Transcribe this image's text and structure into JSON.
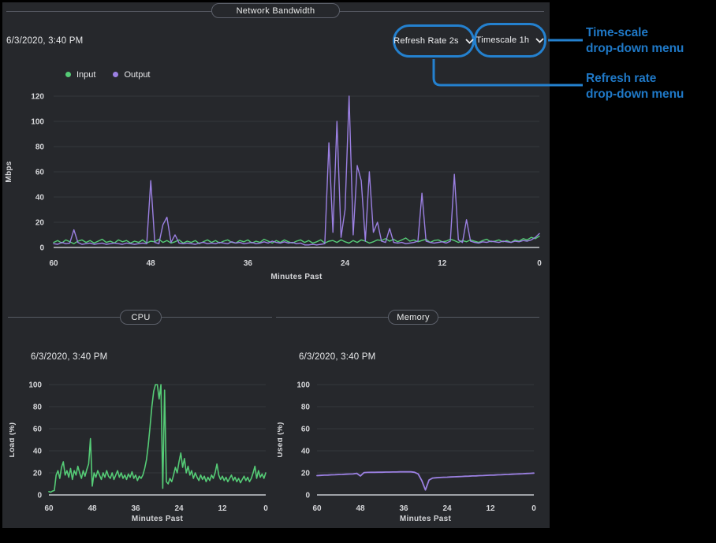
{
  "colors": {
    "panel_bg": "#26282c",
    "accent_blue": "#2481cf",
    "annotation_text_blue": "#1f78c6",
    "input_green": "#55cb76",
    "output_purple": "#9b80e2",
    "grid_line": "#34373d",
    "axis_line": "#9fa2a7"
  },
  "controls": {
    "refresh_rate_label": "Refresh Rate 2s",
    "timescale_label": "Timescale 1h"
  },
  "annotations": {
    "timescale_line1": "Time-scale",
    "timescale_line2": "drop-down menu",
    "refresh_line1": "Refresh rate",
    "refresh_line2": "drop-down menu"
  },
  "chart_data": [
    {
      "id": "network",
      "type": "line",
      "title": "Network Bandwidth",
      "timestamp": "6/3/2020, 3:40 PM",
      "xlabel": "Minutes Past",
      "ylabel": "Mbps",
      "ylim": [
        0,
        120
      ],
      "yticks": [
        0,
        20,
        40,
        60,
        80,
        100,
        120
      ],
      "xticks": [
        60,
        48,
        36,
        24,
        12,
        0
      ],
      "x_range_minutes": [
        60,
        0
      ],
      "grid": "horizontal",
      "legend_position": "top-left",
      "series": [
        {
          "name": "Input",
          "color": "#55cb76",
          "values": [
            4,
            5.5,
            3.5,
            6,
            4.5,
            3,
            5,
            6,
            4,
            5.5,
            3.5,
            5,
            6.5,
            4,
            5,
            3.5,
            6,
            4.5,
            5.5,
            3.5,
            5,
            4,
            6,
            3.5,
            5,
            4.5,
            6.5,
            4,
            5.5,
            3.5,
            4.5,
            6,
            3.5,
            5,
            4,
            5.5,
            3,
            4.5,
            6,
            4,
            5.5,
            3.5,
            5,
            6,
            4,
            3.5,
            5.5,
            4.5,
            6,
            3.5,
            5,
            4,
            6.5,
            5,
            3.5,
            5.5,
            4,
            6,
            4.5,
            3.5,
            5,
            6,
            4,
            5.5,
            3.5,
            4.5,
            6,
            3.5,
            5,
            5.5,
            4,
            6,
            4.5,
            3.5,
            5.5,
            4,
            6,
            5,
            3.5,
            4.5,
            6,
            5.5,
            7,
            5,
            6.5,
            4.5,
            6,
            7.5,
            5,
            6,
            4.5,
            5.5,
            6.5,
            4,
            5.5,
            6,
            4.5,
            5,
            6.5,
            5.5,
            4,
            5.5,
            4.5,
            6,
            5,
            4,
            5.5,
            6.5,
            4.5,
            5,
            6,
            4.5,
            5.5,
            4,
            6,
            5,
            7,
            6,
            8,
            7,
            9
          ]
        },
        {
          "name": "Output",
          "color": "#9b80e2",
          "values": [
            3,
            2.5,
            4,
            3,
            3.5,
            14,
            4,
            2.5,
            3,
            3.5,
            2.5,
            3,
            3.5,
            2.5,
            3,
            3.5,
            3,
            2.5,
            3.5,
            3,
            2.5,
            3,
            3.5,
            3,
            53,
            4,
            3,
            18,
            24,
            4,
            10,
            3.5,
            3,
            3.5,
            3,
            2.5,
            3.5,
            4,
            3,
            3.5,
            3,
            4,
            3.5,
            3,
            4.5,
            3.5,
            4,
            3,
            3.5,
            4,
            3,
            3.5,
            4.5,
            3.5,
            5,
            4,
            3.5,
            4.5,
            3.5,
            4,
            3,
            3.5,
            2,
            2,
            2.5,
            2,
            2.5,
            3,
            83,
            12,
            100,
            8,
            30,
            120,
            10,
            65,
            53,
            5,
            60,
            12,
            20,
            5,
            4,
            15,
            4,
            3.5,
            4,
            3,
            3.5,
            4,
            5,
            43,
            5,
            4,
            3.5,
            4,
            4.5,
            3.5,
            5,
            58,
            6,
            4,
            22,
            5,
            4,
            3.5,
            4.5,
            4,
            5,
            4.5,
            4,
            5,
            4.5,
            4,
            5,
            4.5,
            5.5,
            5,
            6,
            8,
            11
          ]
        }
      ]
    },
    {
      "id": "cpu",
      "type": "line",
      "title": "CPU",
      "timestamp": "6/3/2020, 3:40 PM",
      "xlabel": "Minutes Past",
      "ylabel": "Load (%)",
      "ylim": [
        0,
        100
      ],
      "yticks": [
        0,
        20,
        40,
        60,
        80,
        100
      ],
      "xticks": [
        60,
        48,
        36,
        24,
        12,
        0
      ],
      "x_range_minutes": [
        60,
        0
      ],
      "grid": "horizontal",
      "series": [
        {
          "name": "Load",
          "color": "#55cb76",
          "values": [
            3,
            2.5,
            3.5,
            4,
            18,
            22,
            15,
            25,
            30,
            18,
            22,
            16,
            24,
            14,
            22,
            18,
            26,
            20,
            15,
            22,
            17,
            23,
            28,
            51,
            8,
            20,
            16,
            22,
            18,
            14,
            20,
            16,
            22,
            17,
            15,
            20,
            14,
            18,
            22,
            16,
            20,
            15,
            18,
            14,
            19,
            16,
            21,
            15,
            18,
            13,
            17,
            15,
            18,
            24,
            32,
            45,
            62,
            80,
            94,
            100,
            100,
            87,
            100,
            6,
            95,
            12,
            10,
            15,
            12,
            18,
            25,
            20,
            30,
            38,
            25,
            33,
            20,
            26,
            18,
            22,
            15,
            20,
            16,
            13,
            18,
            14,
            17,
            12,
            16,
            13,
            18,
            15,
            20,
            28,
            18,
            14,
            17,
            13,
            16,
            12,
            15,
            18,
            13,
            16,
            12,
            15,
            11,
            14,
            17,
            13,
            16,
            12,
            15,
            20,
            26,
            15,
            22,
            16,
            19,
            15,
            20
          ]
        }
      ]
    },
    {
      "id": "memory",
      "type": "line",
      "title": "Memory",
      "timestamp": "6/3/2020, 3:40 PM",
      "xlabel": "Minutes Past",
      "ylabel": "Used (%)",
      "ylim": [
        0,
        100
      ],
      "yticks": [
        0,
        20,
        40,
        60,
        80,
        100
      ],
      "xticks": [
        60,
        48,
        36,
        24,
        12,
        0
      ],
      "x_range_minutes": [
        60,
        0
      ],
      "grid": "horizontal",
      "series": [
        {
          "name": "Used",
          "color": "#9b80e2",
          "values": [
            17.5,
            17.7,
            17.9,
            18.0,
            18.2,
            18.3,
            18.5,
            18.6,
            18.8,
            18.9,
            19.0,
            19.6,
            17.2,
            20.2,
            20.4,
            20.5,
            20.5,
            20.6,
            20.6,
            20.7,
            20.7,
            20.8,
            20.8,
            20.9,
            20.9,
            21.0,
            20.9,
            20.5,
            19.0,
            13.0,
            4.5,
            13.5,
            15.3,
            15.6,
            15.8,
            16.0,
            16.1,
            16.3,
            16.4,
            16.6,
            16.7,
            16.9,
            17.0,
            17.2,
            17.3,
            17.5,
            17.6,
            17.8,
            17.9,
            18.0,
            18.2,
            18.3,
            18.5,
            18.6,
            18.8,
            18.9,
            19.1,
            19.2,
            19.4,
            19.6,
            19.8
          ]
        }
      ]
    }
  ]
}
